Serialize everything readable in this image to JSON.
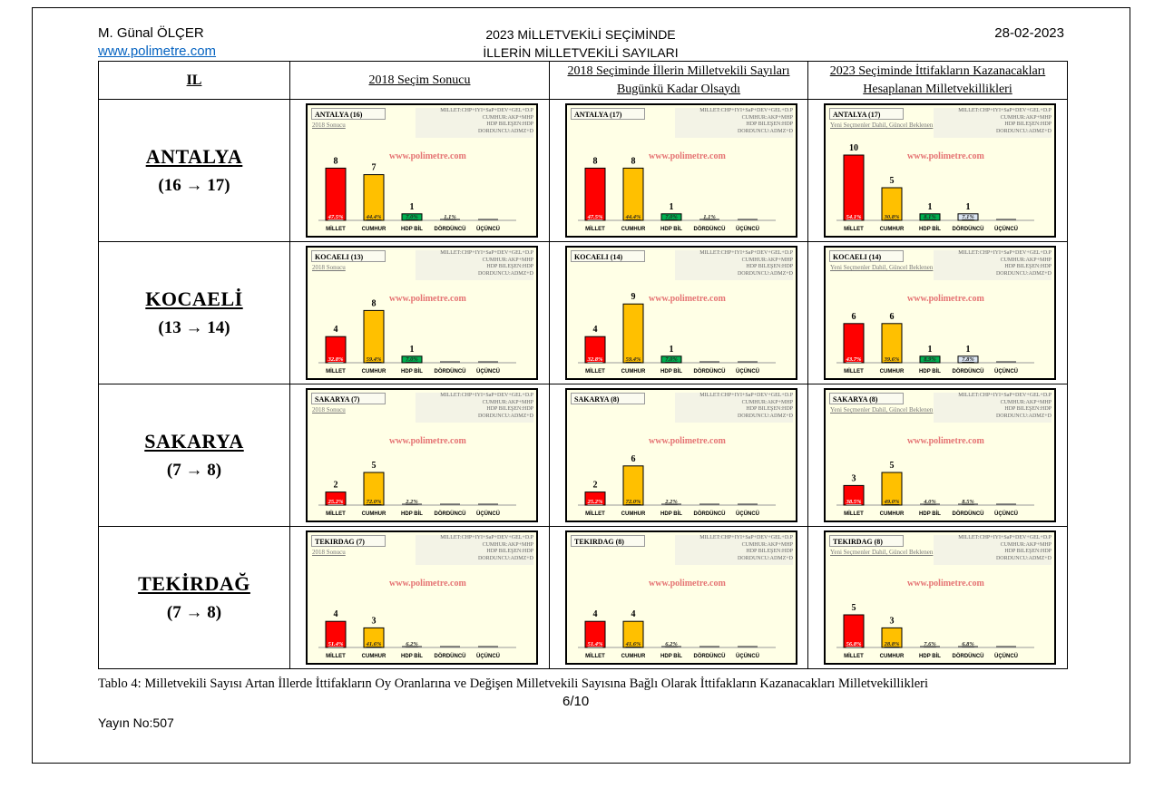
{
  "header": {
    "author": "M. Günal ÖLÇER",
    "website": "www.polimetre.com",
    "title_line1": "2023 MİLLETVEKİLİ SEÇİMİNDE",
    "title_line2": "İLLERİN MİLLETVEKİLİ SAYILARI",
    "date": "28-02-2023"
  },
  "table": {
    "col_headers": {
      "il": "IL",
      "c1": "2018 Seçim Sonucu",
      "c2_line1": "2018 Seçiminde İllerin Milletvekili Sayıları",
      "c2_line2": "Bugünkü Kadar Olsaydı",
      "c3_line1": "2023 Seçiminde İttifakların Kazanacakları",
      "c3_line2": "Hesaplanan Milletvekillikleri"
    },
    "rows": [
      {
        "name": "ANTALYA",
        "change": "(16 → 17)"
      },
      {
        "name": "KOCAELİ",
        "change": "(13 → 14)"
      },
      {
        "name": "SAKARYA",
        "change": "(7 → 8)"
      },
      {
        "name": "TEKİRDAĞ",
        "change": "(7 → 8)"
      }
    ]
  },
  "chart_common": {
    "legend": [
      "MILLET:CHP+IYI+SaP+DEV+GEL+D.P",
      "CUMHUR:AKP+MHP",
      "HDP BILEŞEN:HDP",
      "DORDUNCU:ADMZ+D"
    ],
    "watermark": "www.polimetre.com",
    "categories": [
      "MİLLET",
      "CUMHUR",
      "HDP BİL",
      "DÖRDÜNCÜ",
      "ÜÇÜNCÜ"
    ],
    "colors": [
      "#ff0000",
      "#ffc000",
      "#00b050",
      "#dce6f2",
      "#bfbfbf"
    ]
  },
  "chart_data": [
    {
      "type": "bar",
      "title": "ANTALYA (16)",
      "subtitle": "2018 Sonucu",
      "seats": [
        8,
        7,
        1,
        null,
        null
      ],
      "pct": [
        "47.5%",
        "44.4%",
        "7.0%",
        "1.1%",
        ""
      ]
    },
    {
      "type": "bar",
      "title": "ANTALYA (17)",
      "subtitle": "",
      "seats": [
        8,
        8,
        1,
        null,
        null
      ],
      "pct": [
        "47.5%",
        "44.4%",
        "7.0%",
        "1.1%",
        ""
      ]
    },
    {
      "type": "bar",
      "title": "ANTALYA (17)",
      "subtitle": "Yeni Seçmenler Dahil, Güncel Beklenen",
      "seats": [
        10,
        5,
        1,
        1,
        null
      ],
      "pct": [
        "54.1%",
        "30.8%",
        "8.1%",
        "7.1%",
        ""
      ]
    },
    {
      "type": "bar",
      "title": "KOCAELI (13)",
      "subtitle": "2018 Sonucu",
      "seats": [
        4,
        8,
        1,
        null,
        null
      ],
      "pct": [
        "32.8%",
        "59.4%",
        "7.0%",
        "",
        ""
      ]
    },
    {
      "type": "bar",
      "title": "KOCAELI (14)",
      "subtitle": "",
      "seats": [
        4,
        9,
        1,
        null,
        null
      ],
      "pct": [
        "32.8%",
        "59.4%",
        "7.0%",
        "",
        ""
      ]
    },
    {
      "type": "bar",
      "title": "KOCAELI (14)",
      "subtitle": "Yeni Seçmenler Dahil, Güncel Beklenen",
      "seats": [
        6,
        6,
        1,
        1,
        null
      ],
      "pct": [
        "43.7%",
        "39.6%",
        "8.9%",
        "7.8%",
        ""
      ]
    },
    {
      "type": "bar",
      "title": "SAKARYA (7)",
      "subtitle": "2018 Sonucu",
      "seats": [
        2,
        5,
        null,
        null,
        null
      ],
      "pct": [
        "25.2%",
        "72.0%",
        "2.2%",
        "",
        ""
      ]
    },
    {
      "type": "bar",
      "title": "SAKARYA (8)",
      "subtitle": "",
      "seats": [
        2,
        6,
        null,
        null,
        null
      ],
      "pct": [
        "25.2%",
        "72.0%",
        "2.2%",
        "",
        ""
      ]
    },
    {
      "type": "bar",
      "title": "SAKARYA (8)",
      "subtitle": "Yeni Seçmenler Dahil, Güncel Beklenen",
      "seats": [
        3,
        5,
        null,
        null,
        null
      ],
      "pct": [
        "38.5%",
        "49.0%",
        "4.0%",
        "8.5%",
        ""
      ]
    },
    {
      "type": "bar",
      "title": "TEKIRDAG (7)",
      "subtitle": "2018 Sonucu",
      "seats": [
        4,
        3,
        null,
        null,
        null
      ],
      "pct": [
        "51.4%",
        "41.6%",
        "6.2%",
        "",
        ""
      ]
    },
    {
      "type": "bar",
      "title": "TEKIRDAG (8)",
      "subtitle": "",
      "seats": [
        4,
        4,
        null,
        null,
        null
      ],
      "pct": [
        "51.4%",
        "41.6%",
        "6.2%",
        "",
        ""
      ]
    },
    {
      "type": "bar",
      "title": "TEKIRDAG (8)",
      "subtitle": "Yeni Seçmenler Dahil, Güncel Beklenen",
      "seats": [
        5,
        3,
        null,
        null,
        null
      ],
      "pct": [
        "56.8%",
        "28.8%",
        "7.6%",
        "6.8%",
        ""
      ]
    }
  ],
  "footer": {
    "caption": "Tablo  4:  Milletvekili Sayısı Artan İllerde İttifakların Oy Oranlarına ve Değişen Milletvekili Sayısına Bağlı Olarak İttifakların Kazanacakları Milletvekillikleri",
    "page": "6/10",
    "yayin": "Yayın No:507"
  }
}
